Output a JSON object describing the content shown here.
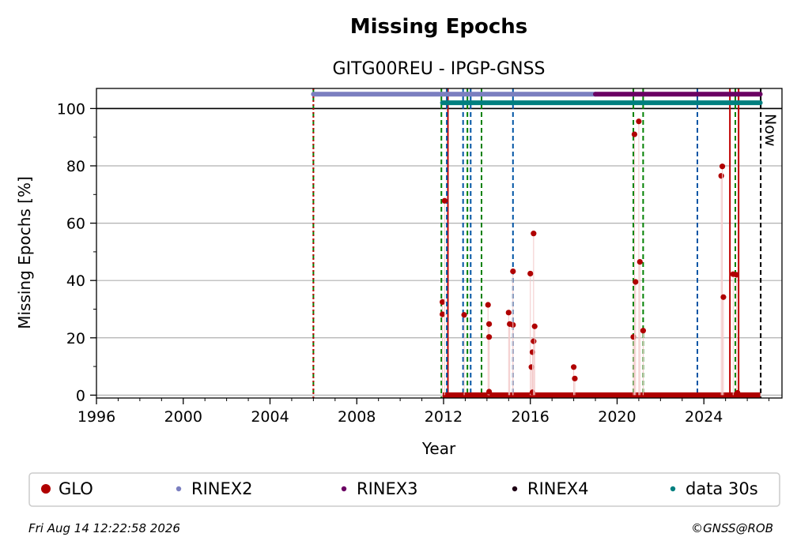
{
  "chart_data": {
    "type": "scatter",
    "title": "Missing Epochs",
    "subtitle": "GITG00REU - IPGP-GNSS",
    "xlabel": "Year",
    "ylabel": "Missing Epochs [%]",
    "xlim": [
      1996,
      2027.6
    ],
    "ylim": [
      -1,
      107
    ],
    "xticks": [
      1996,
      2000,
      2004,
      2008,
      2012,
      2016,
      2020,
      2024
    ],
    "yticks": [
      0,
      20,
      40,
      60,
      80,
      100
    ],
    "grid": "horizontal",
    "now_label": "Now",
    "now_x": 2026.62,
    "reference_line_y": 100,
    "series": [
      {
        "name": "GLO",
        "color": "#b00000",
        "points": [
          [
            2011.95,
            32.5
          ],
          [
            2011.95,
            28.2
          ],
          [
            2012.05,
            67.8
          ],
          [
            2012.95,
            28.0
          ],
          [
            2014.05,
            31.5
          ],
          [
            2014.1,
            24.8
          ],
          [
            2014.1,
            20.3
          ],
          [
            2014.1,
            1.2
          ],
          [
            2015.0,
            28.8
          ],
          [
            2015.05,
            24.8
          ],
          [
            2015.2,
            24.5
          ],
          [
            2015.2,
            43.2
          ],
          [
            2016.0,
            42.4
          ],
          [
            2016.05,
            9.8
          ],
          [
            2016.1,
            15.0
          ],
          [
            2016.1,
            1.0
          ],
          [
            2016.15,
            56.4
          ],
          [
            2016.15,
            18.8
          ],
          [
            2016.2,
            24.0
          ],
          [
            2018.0,
            9.8
          ],
          [
            2018.05,
            5.8
          ],
          [
            2020.75,
            20.3
          ],
          [
            2020.8,
            91.0
          ],
          [
            2020.85,
            39.5
          ],
          [
            2021.0,
            95.5
          ],
          [
            2021.05,
            46.5
          ],
          [
            2021.2,
            22.5
          ],
          [
            2024.8,
            76.5
          ],
          [
            2024.85,
            79.8
          ],
          [
            2024.9,
            34.2
          ],
          [
            2025.35,
            42.2
          ],
          [
            2025.5,
            42.0
          ],
          [
            2025.55,
            0.8
          ]
        ]
      },
      {
        "name": "RINEX2",
        "color": "#7b7fc0",
        "range": [
          2006.0,
          2019.0
        ],
        "y": 105
      },
      {
        "name": "RINEX3",
        "color": "#6b0063",
        "range": [
          2019.0,
          2026.6
        ],
        "y": 105
      },
      {
        "name": "RINEX4",
        "color": "#1e0014"
      },
      {
        "name": "data 30s",
        "color": "#007f7f",
        "range": [
          2011.95,
          2026.6
        ],
        "y": 102
      }
    ],
    "glo_baseline": {
      "range": [
        2011.95,
        2026.6
      ],
      "y": 0
    },
    "event_lines": [
      {
        "x": 2006.0,
        "color": "#008000",
        "style": "dashed"
      },
      {
        "x": 2006.0,
        "color": "#c00000",
        "style": "dotted"
      },
      {
        "x": 2011.9,
        "color": "#008000",
        "style": "dashed"
      },
      {
        "x": 2012.2,
        "color": "#c00000",
        "style": "solid"
      },
      {
        "x": 2012.15,
        "color": "#0055a5",
        "style": "dashed"
      },
      {
        "x": 2012.9,
        "color": "#0055a5",
        "style": "dashed"
      },
      {
        "x": 2013.1,
        "color": "#008000",
        "style": "dashed"
      },
      {
        "x": 2013.25,
        "color": "#0055a5",
        "style": "dashed"
      },
      {
        "x": 2013.75,
        "color": "#008000",
        "style": "dashed"
      },
      {
        "x": 2015.2,
        "color": "#0055a5",
        "style": "dashed"
      },
      {
        "x": 2020.75,
        "color": "#008000",
        "style": "dashed"
      },
      {
        "x": 2021.2,
        "color": "#008000",
        "style": "dashed"
      },
      {
        "x": 2023.7,
        "color": "#0055a5",
        "style": "dashed"
      },
      {
        "x": 2025.2,
        "color": "#c00000",
        "style": "solid"
      },
      {
        "x": 2025.45,
        "color": "#008000",
        "style": "dashed"
      },
      {
        "x": 2025.6,
        "color": "#c00000",
        "style": "solid"
      }
    ]
  },
  "legend": {
    "items": [
      {
        "label": "GLO",
        "color": "#b00000",
        "marker": "large"
      },
      {
        "label": "RINEX2",
        "color": "#7b7fc0",
        "marker": "small"
      },
      {
        "label": "RINEX3",
        "color": "#6b0063",
        "marker": "small"
      },
      {
        "label": "RINEX4",
        "color": "#1e0014",
        "marker": "small"
      },
      {
        "label": "data 30s",
        "color": "#007f7f",
        "marker": "small"
      }
    ]
  },
  "footer": {
    "timestamp": "Fri Aug 14 12:22:58 2026",
    "credit": "©GNSS@ROB"
  }
}
